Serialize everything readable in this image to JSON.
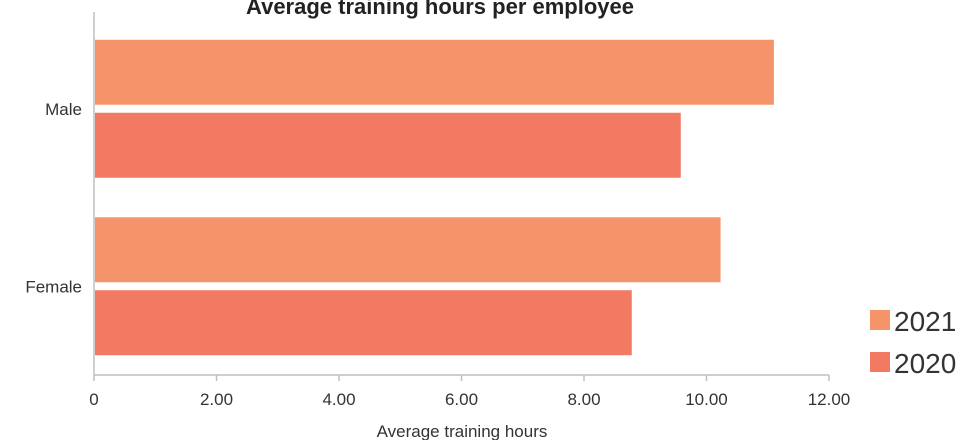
{
  "chart_data": {
    "type": "bar",
    "orientation": "horizontal",
    "title": "Average training hours per employee",
    "categories": [
      "Male",
      "Female"
    ],
    "series": [
      {
        "name": "2021",
        "values": [
          11.1,
          10.23
        ],
        "color": "#F5936A"
      },
      {
        "name": "2020",
        "values": [
          9.58,
          8.78
        ],
        "color": "#F27A62"
      }
    ],
    "xlabel": "Average training hours",
    "ylabel": "",
    "xlim": [
      0,
      12
    ],
    "ticks": [
      "0",
      "2.00",
      "4.00",
      "6.00",
      "8.00",
      "10.00",
      "12.00"
    ],
    "legend": "bottom-right",
    "grid": false
  }
}
